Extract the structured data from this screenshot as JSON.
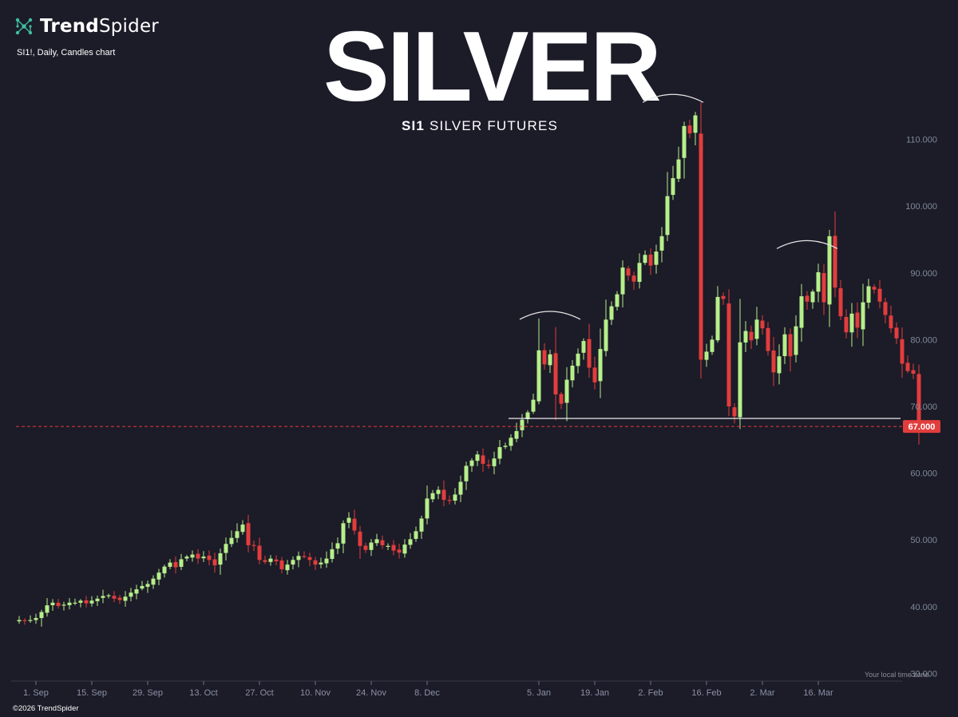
{
  "brand": {
    "bold": "Trend",
    "regular": "Spider",
    "icon": "network-nodes-icon",
    "icon_color": "#3fbf9f"
  },
  "chart_meta": "SI1!, Daily, Candles chart",
  "title": "SILVER",
  "subtitle": {
    "ticker": "SI1",
    "name": "SILVER FUTURES"
  },
  "copyright": "©2026 TrendSpider",
  "local_time_label": "Your local time zone",
  "colors": {
    "background": "#1c1b28",
    "up": "#b6ef8a",
    "down": "#e23d3d",
    "support": "#ffffff",
    "current_price": "#e23d3d",
    "axis_text": "#7f8b9a"
  },
  "chart_data": {
    "type": "candlestick",
    "ylim": [
      30,
      115
    ],
    "y_ticks": [
      "110.000",
      "100.000",
      "90.000",
      "80.000",
      "70.000",
      "60.000",
      "50.000",
      "40.000",
      "30.000"
    ],
    "y_tick_values": [
      110,
      100,
      90,
      80,
      70,
      60,
      50,
      40,
      30
    ],
    "x_ticks": [
      "1. Sep",
      "15. Sep",
      "29. Sep",
      "13. Oct",
      "27. Oct",
      "10. Nov",
      "24. Nov",
      "8. Dec",
      "5. Jan",
      "19. Jan",
      "2. Feb",
      "16. Feb",
      "2. Mar",
      "16. Mar"
    ],
    "x_tick_index": [
      3,
      13,
      23,
      33,
      43,
      53,
      63,
      73,
      93,
      103,
      113,
      123,
      133,
      143
    ],
    "current_price": {
      "value": 67,
      "label": "67.000"
    },
    "support_level": 68.2,
    "closes": [
      38.0,
      37.9,
      38.0,
      38.3,
      39.2,
      40.2,
      40.6,
      40.1,
      40.3,
      40.6,
      40.6,
      40.9,
      40.5,
      40.9,
      41.2,
      41.6,
      41.7,
      41.2,
      41.0,
      41.5,
      42.1,
      42.6,
      43.1,
      43.4,
      44.2,
      45.1,
      46.0,
      46.6,
      45.9,
      47.1,
      47.5,
      47.8,
      47.2,
      47.5,
      47.0,
      46.2,
      48.0,
      49.4,
      50.3,
      51.3,
      52.3,
      49.2,
      49.1,
      47.0,
      46.7,
      47.2,
      46.8,
      45.6,
      46.3,
      47.0,
      47.6,
      47.5,
      47.0,
      46.3,
      46.6,
      47.2,
      48.6,
      49.5,
      52.5,
      53.3,
      51.4,
      49.1,
      48.5,
      49.6,
      50.1,
      49.2,
      49.1,
      48.4,
      48.1,
      49.3,
      50.1,
      51.3,
      53.2,
      56.2,
      57.0,
      57.5,
      56.0,
      55.9,
      56.8,
      58.7,
      61.1,
      61.9,
      62.8,
      61.4,
      61.1,
      62.2,
      63.9,
      64.1,
      65.3,
      66.3,
      68.0,
      69.1,
      71.0,
      78.4,
      76.3,
      77.8,
      71.8,
      70.4,
      74.0,
      76.1,
      77.9,
      79.8,
      75.8,
      73.6,
      78.6,
      83.0,
      85.0,
      86.8,
      90.8,
      89.6,
      88.7,
      91.5,
      92.7,
      91.1,
      93.2,
      95.5,
      101.5,
      104.2,
      107.0,
      112.0,
      110.9,
      113.6,
      77.0,
      78.2,
      80.0,
      86.4,
      86.1,
      70.0,
      68.5,
      79.6,
      81.3,
      79.9,
      83.0,
      81.7,
      78.3,
      75.1,
      77.5,
      80.8,
      77.5,
      82.0,
      86.5,
      85.7,
      87.2,
      90.1,
      85.6,
      95.5,
      87.8,
      83.5,
      81.1,
      83.9,
      81.8,
      85.6,
      88.0,
      87.5,
      85.7,
      83.7,
      81.7,
      80.2,
      76.4,
      75.3,
      74.9,
      67.0
    ]
  }
}
